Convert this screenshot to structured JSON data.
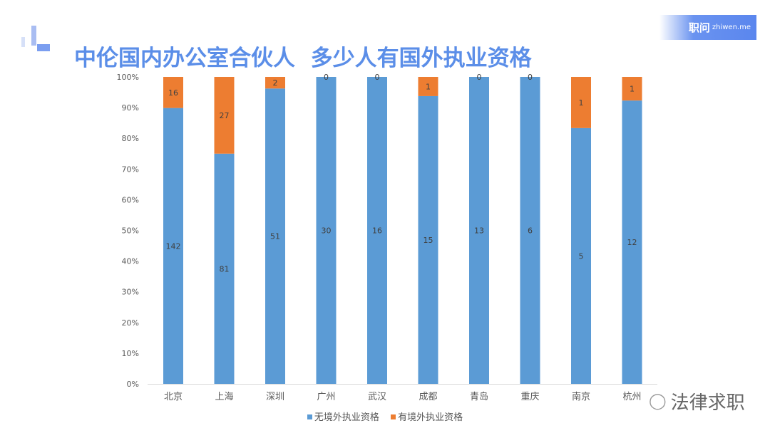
{
  "title": "中伦国内办公室合伙人  多少人有国外执业资格",
  "badge": {
    "brand": "职问",
    "domain": "zhiwen.me"
  },
  "watermark": "法律求职",
  "chart_data": {
    "type": "bar",
    "stacked": "percent",
    "categories": [
      "北京",
      "上海",
      "深圳",
      "广州",
      "武汉",
      "成都",
      "青岛",
      "重庆",
      "南京",
      "杭州"
    ],
    "series": [
      {
        "name": "无境外执业资格",
        "color": "#5b9bd5",
        "values": [
          142,
          81,
          51,
          30,
          16,
          15,
          13,
          6,
          5,
          12
        ]
      },
      {
        "name": "有境外执业资格",
        "color": "#ed7d31",
        "values": [
          16,
          27,
          2,
          0,
          0,
          1,
          0,
          0,
          1,
          1
        ]
      }
    ],
    "yticks": [
      "0%",
      "10%",
      "20%",
      "30%",
      "40%",
      "50%",
      "60%",
      "70%",
      "80%",
      "90%",
      "100%"
    ],
    "ylim": [
      0,
      100
    ],
    "grid": false,
    "legend": "bottom"
  }
}
